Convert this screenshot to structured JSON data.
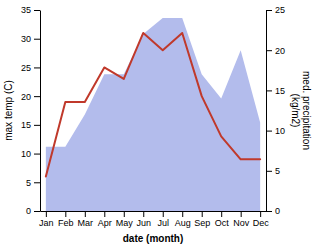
{
  "chart_data": {
    "type": "line",
    "xlabel": "date (month)",
    "ylabel": "max temp (C)",
    "y2label": "med. precipitation\n(kg/m2)",
    "categories": [
      "Jan",
      "Feb",
      "Mar",
      "Apr",
      "May",
      "Jun",
      "Jul",
      "Aug",
      "Sep",
      "Oct",
      "Nov",
      "Dec"
    ],
    "series": [
      {
        "type": "area",
        "axis": "y2",
        "color": "#b3bcec",
        "values": [
          8,
          8,
          12,
          17,
          17,
          22,
          24,
          24,
          17,
          14,
          20,
          11
        ]
      },
      {
        "type": "line",
        "color": "#c0392b",
        "values": [
          6,
          19,
          19,
          25,
          23,
          31,
          28,
          31,
          20,
          13,
          9,
          9
        ]
      }
    ],
    "ylim": [
      0,
      35
    ],
    "yticks": [
      0,
      5,
      10,
      15,
      20,
      25,
      30,
      35
    ],
    "y2lim": [
      0,
      25
    ],
    "y2ticks": [
      0,
      5,
      10,
      15,
      20,
      25
    ],
    "grid": false
  }
}
